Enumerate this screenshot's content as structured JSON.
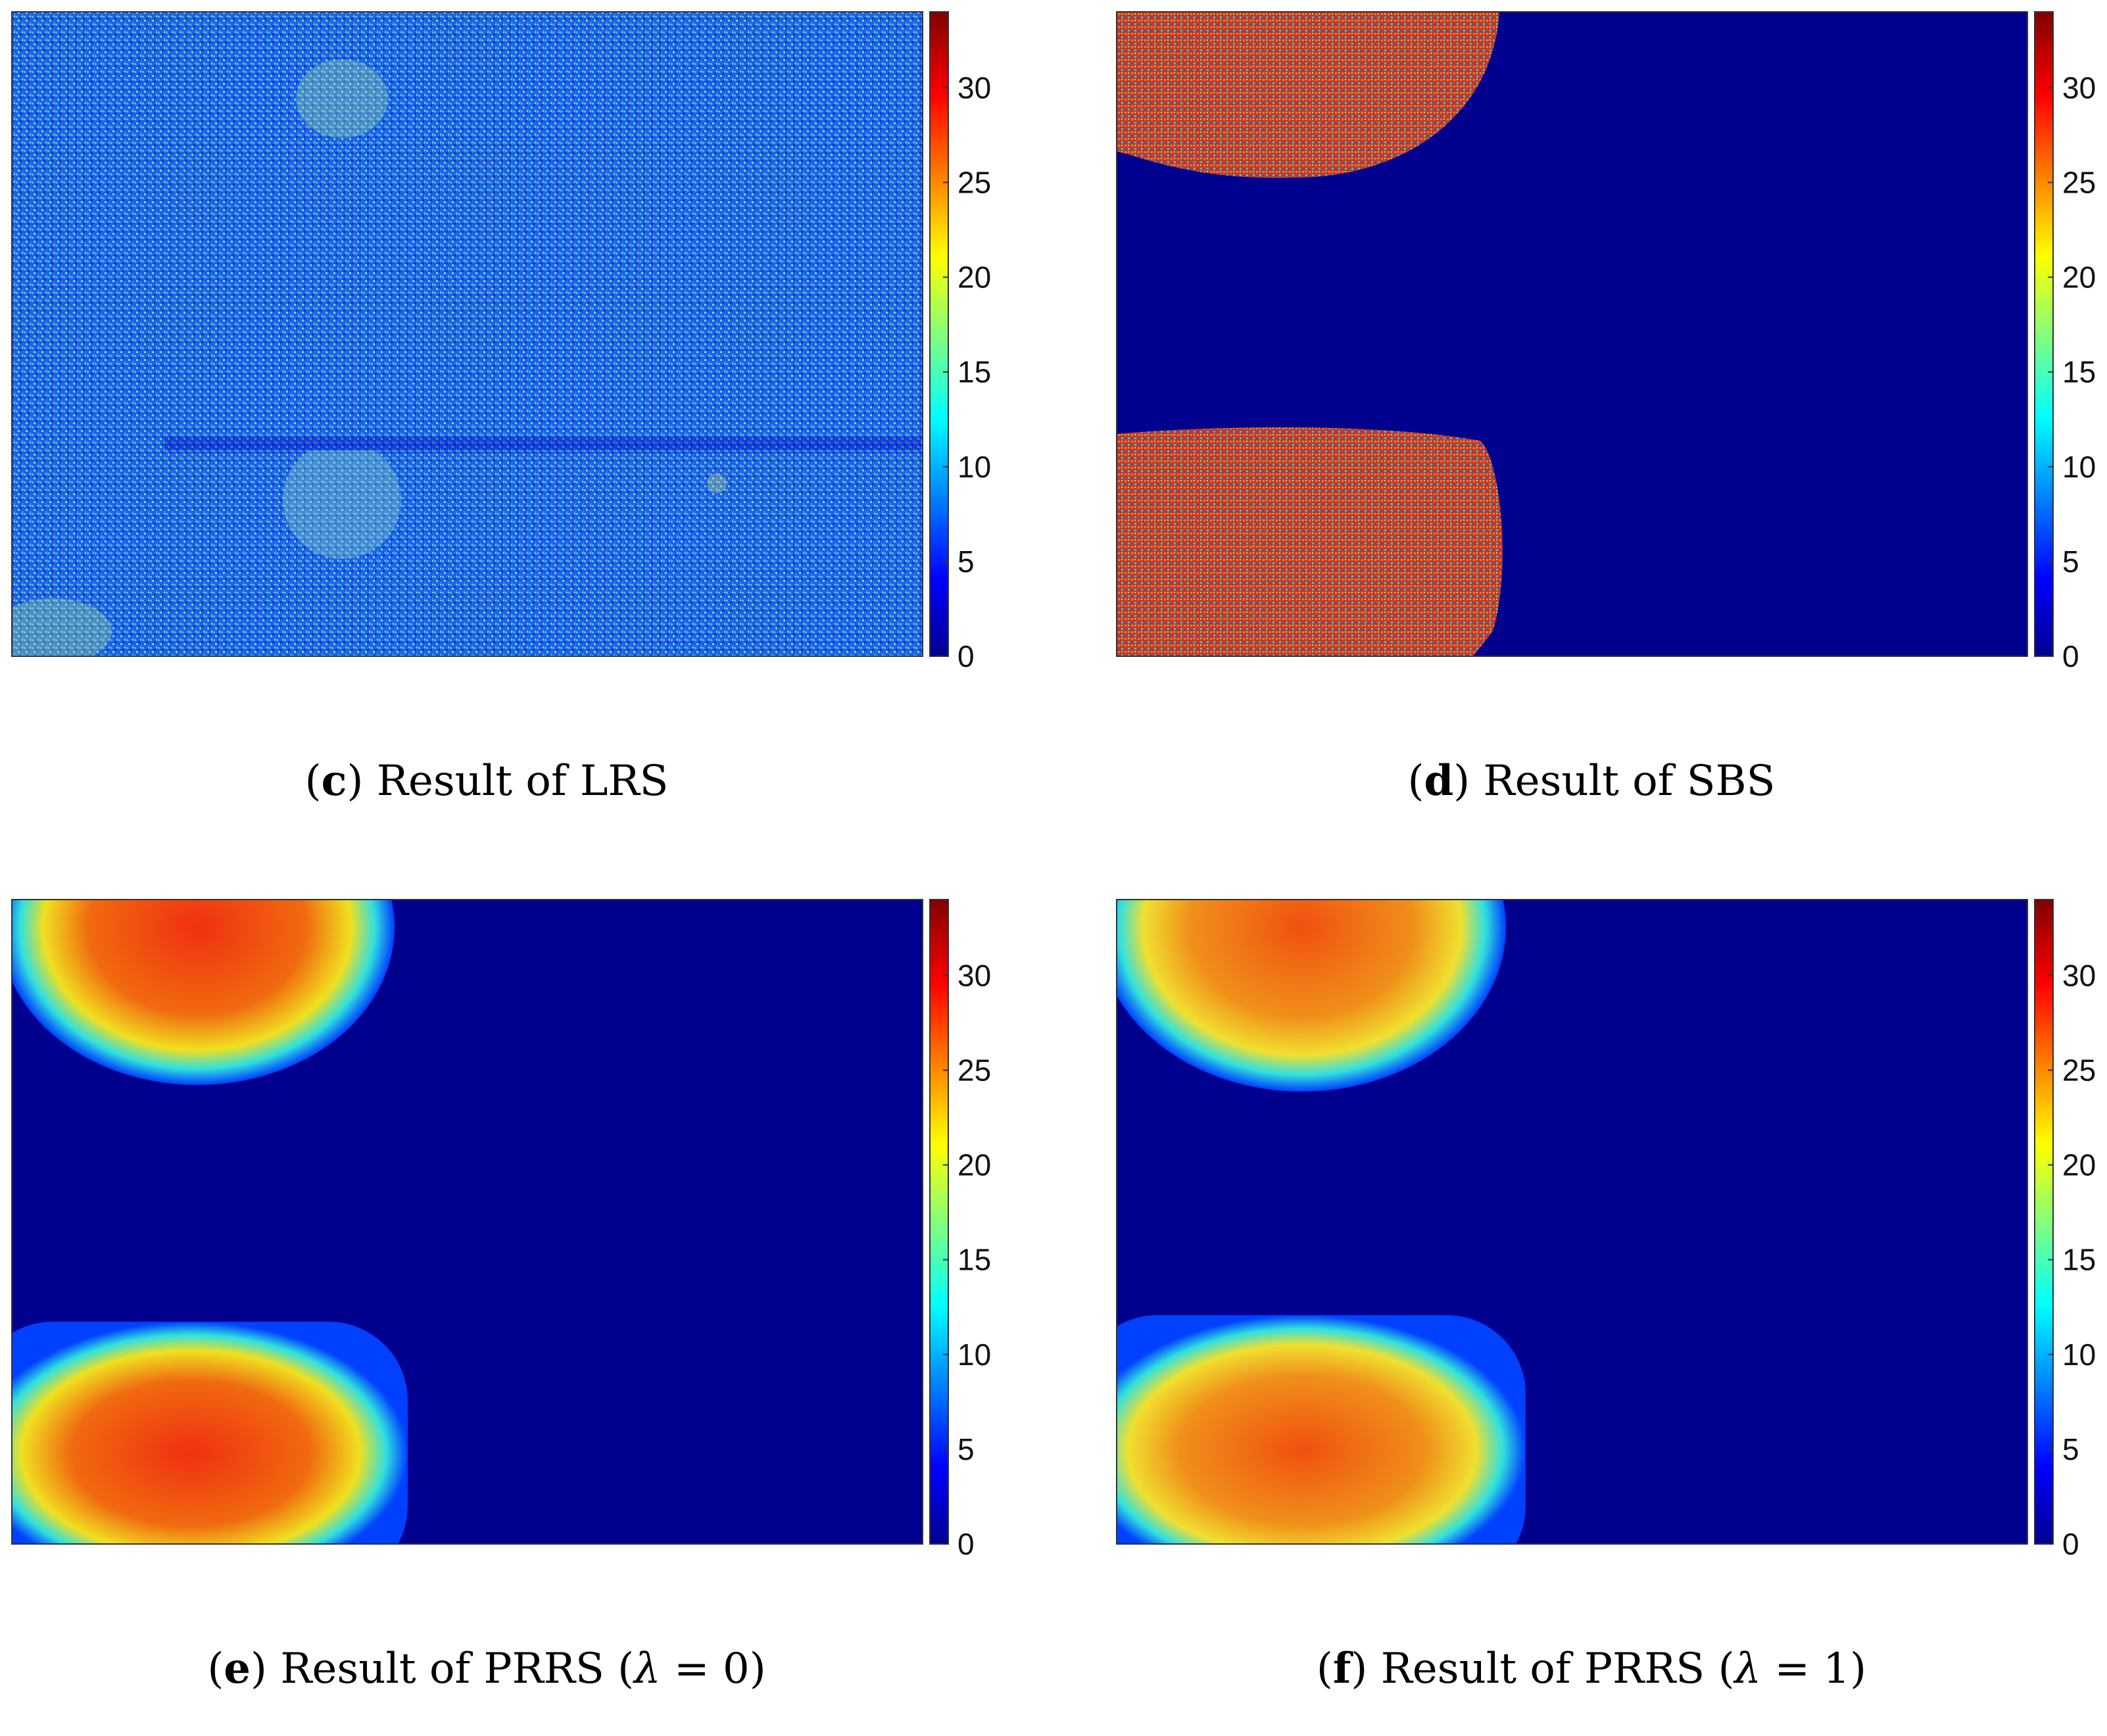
{
  "colors": {
    "jet_dark_blue": "#00008f",
    "jet_blue": "#0000ff",
    "jet_cyan": "#00ffff",
    "jet_yellow": "#ffff00",
    "jet_red": "#ff0000",
    "jet_dark_red": "#800000"
  },
  "chart_data": [
    {
      "type": "heatmap",
      "panel_letter": "c",
      "caption_text": " Result of LRS",
      "colormap": "jet",
      "colorbar_range": [
        0,
        34
      ],
      "colorbar_ticks": [
        "0",
        "5",
        "10",
        "15",
        "20",
        "25",
        "30"
      ],
      "description_values": {
        "background_mean": 7,
        "region_mean": 7
      }
    },
    {
      "type": "heatmap",
      "panel_letter": "d",
      "caption_text": " Result of SBS",
      "colormap": "jet",
      "colorbar_range": [
        0,
        34
      ],
      "colorbar_ticks": [
        "0",
        "5",
        "10",
        "15",
        "20",
        "25",
        "30"
      ],
      "description_values": {
        "background_mean": 0,
        "region_mean": 30
      }
    },
    {
      "type": "heatmap",
      "panel_letter": "e",
      "caption_text": " Result of PRRS (",
      "caption_symbol": "λ",
      "caption_rest": " = 0)",
      "colormap": "jet",
      "colorbar_range": [
        0,
        34
      ],
      "colorbar_ticks": [
        "0",
        "5",
        "10",
        "15",
        "20",
        "25",
        "30"
      ],
      "description_values": {
        "background_mean": 0,
        "region_mean": 28
      }
    },
    {
      "type": "heatmap",
      "panel_letter": "f",
      "caption_text": " Result of PRRS (",
      "caption_symbol": "λ",
      "caption_rest": " = 1)",
      "colormap": "jet",
      "colorbar_range": [
        0,
        34
      ],
      "colorbar_ticks": [
        "0",
        "5",
        "10",
        "15",
        "20",
        "25",
        "30"
      ],
      "description_values": {
        "background_mean": 0,
        "region_mean": 26
      }
    }
  ]
}
